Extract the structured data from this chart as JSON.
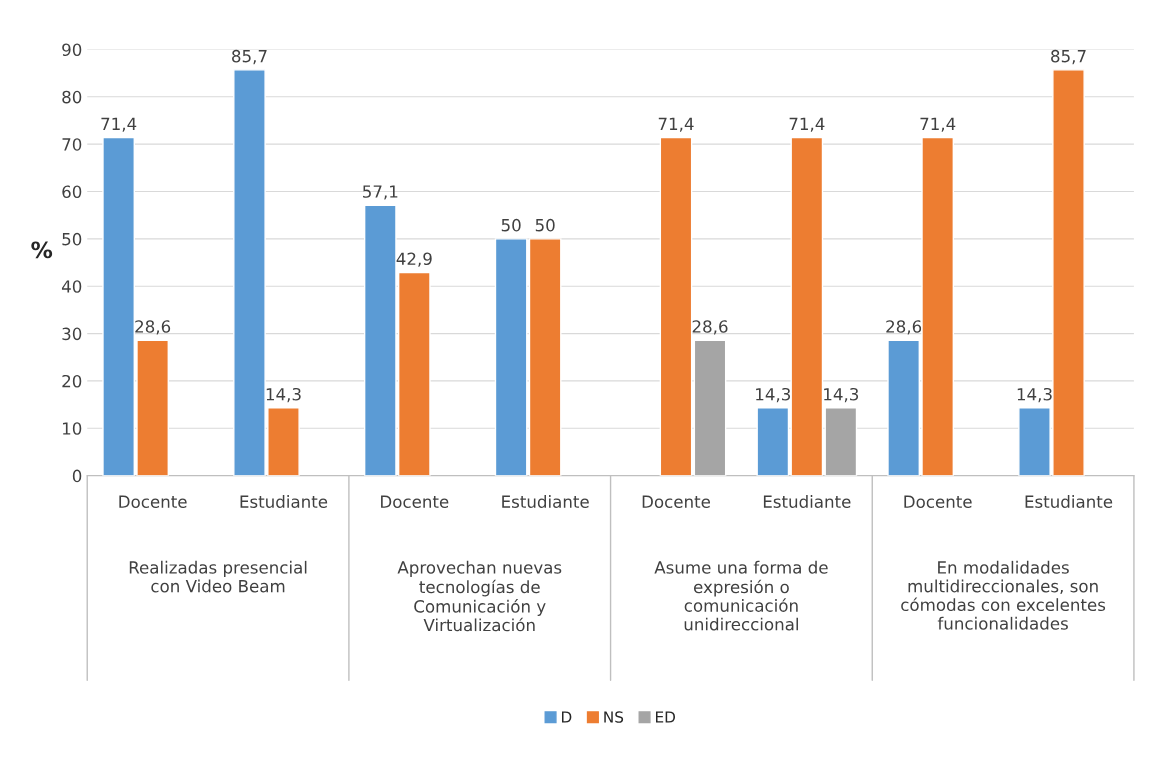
{
  "chart_data": {
    "type": "bar",
    "ylabel": "%",
    "categories": [
      "Docente",
      "Estudiante",
      "Docente",
      "Estudiante",
      "Docente",
      "Estudiante",
      "Docente",
      "Estudiante"
    ],
    "annotations": [
      "Realizadas presencial con Video Beam",
      "Aprovechan nuevas tecnologías de Comunicación y Virtualización",
      "Asume una forma de expresión o comunicación unidireccional",
      "En modalidades multidireccionales, son cómodas con excelentes funcionalidades"
    ],
    "series": [
      {
        "name": "D",
        "color": "#5b9bd5",
        "values": [
          71.4,
          85.7,
          57.1,
          50,
          null,
          14.3,
          28.6,
          14.3
        ],
        "value_labels": [
          "71,4",
          "85,7",
          "57,1",
          "50",
          null,
          "14,3",
          "28,6",
          "14,3"
        ]
      },
      {
        "name": "NS",
        "color": "#ed7d31",
        "values": [
          28.6,
          14.3,
          42.9,
          50,
          71.4,
          71.4,
          71.4,
          85.7
        ],
        "value_labels": [
          "28,6",
          "14,3",
          "42,9",
          "50",
          "71,4",
          "71,4",
          "71,4",
          "85,7"
        ]
      },
      {
        "name": "ED",
        "color": "#a5a5a5",
        "values": [
          null,
          null,
          null,
          null,
          28.6,
          14.3,
          null,
          null
        ],
        "value_labels": [
          null,
          null,
          null,
          null,
          "28,6",
          "14,3",
          null,
          null
        ]
      }
    ],
    "ylim": [
      0,
      90
    ],
    "yticks": [
      0,
      10,
      20,
      30,
      40,
      50,
      60,
      70,
      80,
      90
    ],
    "grid": "y",
    "legend": "bottom"
  }
}
